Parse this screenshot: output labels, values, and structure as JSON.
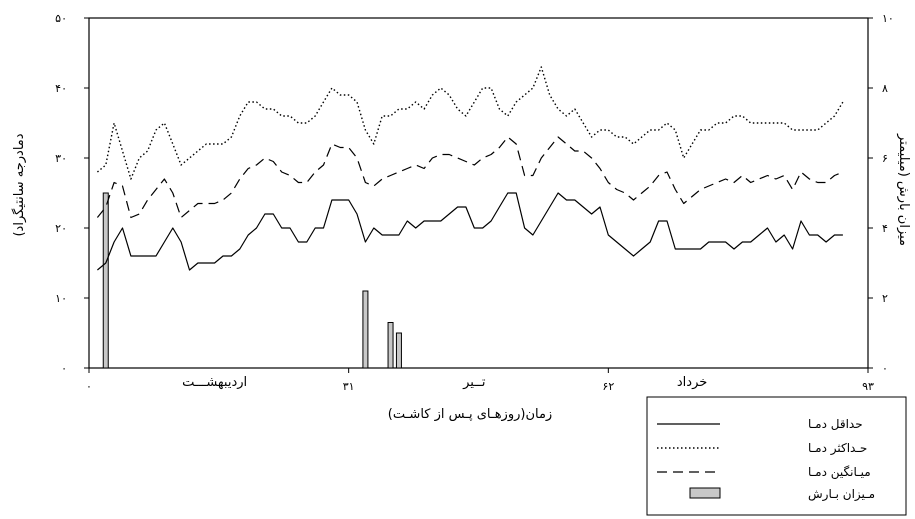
{
  "chart_data": {
    "type": "line",
    "xlabel": "زمان(روزهـای پـس از کاشـت)",
    "ylabel_left": "دمادرجه سانتیگراد)",
    "ylabel_right": "میزان بارش (میلیمتر",
    "xlim": [
      0,
      93
    ],
    "ylim_left": [
      0,
      50
    ],
    "ylim_right": [
      0,
      10
    ],
    "x_ticks": [
      0,
      31,
      62,
      93
    ],
    "x_tick_labels": [
      "۰",
      "۳۱",
      "۶۲",
      "۹۳"
    ],
    "y_left_ticks": [
      0,
      10,
      20,
      30,
      40,
      50
    ],
    "y_left_tick_labels": [
      "۰",
      "۱۰",
      "۲۰",
      "۳۰",
      "۴۰",
      "۵۰"
    ],
    "y_right_ticks": [
      0,
      2,
      4,
      6,
      8,
      10
    ],
    "y_right_tick_labels": [
      "۰",
      "۲",
      "۴",
      "۶",
      "۸",
      "۱۰"
    ],
    "months": [
      {
        "label": "اردیبهشـــت",
        "x_center": 15
      },
      {
        "label": "تــیر",
        "x_center": 46
      },
      {
        "label": "خرداد",
        "x_center": 72
      }
    ],
    "grid": false,
    "legend_position": "bottom-right",
    "series": [
      {
        "name": "حداقل دمـا",
        "style": "solid",
        "x": [
          1,
          2,
          3,
          4,
          5,
          6,
          7,
          8,
          9,
          10,
          11,
          12,
          13,
          14,
          15,
          16,
          17,
          18,
          19,
          20,
          21,
          22,
          23,
          24,
          25,
          26,
          27,
          28,
          29,
          30,
          31,
          32,
          33,
          34,
          35,
          36,
          37,
          38,
          39,
          40,
          41,
          42,
          43,
          44,
          45,
          46,
          47,
          48,
          49,
          50,
          51,
          52,
          53,
          54,
          55,
          56,
          57,
          58,
          59,
          60,
          61,
          62,
          63,
          64,
          65,
          66,
          67,
          68,
          69,
          70,
          71,
          72,
          73,
          74,
          75,
          76,
          77,
          78,
          79,
          80,
          81,
          82,
          83,
          84,
          85,
          86,
          87,
          88,
          89,
          90
        ],
        "values": [
          14,
          15,
          18,
          20,
          16,
          16,
          16,
          16,
          18,
          20,
          18,
          14,
          15,
          15,
          15,
          16,
          16,
          17,
          19,
          20,
          22,
          22,
          20,
          20,
          18,
          18,
          20,
          20,
          24,
          24,
          24,
          22,
          18,
          20,
          19,
          19,
          19,
          21,
          20,
          21,
          21,
          21,
          22,
          23,
          23,
          20,
          20,
          21,
          23,
          25,
          25,
          20,
          19,
          21,
          23,
          25,
          24,
          24,
          23,
          22,
          23,
          19,
          18,
          17,
          16,
          17,
          18,
          21,
          21,
          17,
          17,
          17,
          17,
          18,
          18,
          18,
          17,
          18,
          18,
          19,
          20,
          18,
          19,
          17,
          21,
          19,
          19,
          18,
          19,
          19
        ]
      },
      {
        "name": "حـداکثر دمـا",
        "style": "dotted",
        "x": [
          1,
          2,
          3,
          4,
          5,
          6,
          7,
          8,
          9,
          10,
          11,
          12,
          13,
          14,
          15,
          16,
          17,
          18,
          19,
          20,
          21,
          22,
          23,
          24,
          25,
          26,
          27,
          28,
          29,
          30,
          31,
          32,
          33,
          34,
          35,
          36,
          37,
          38,
          39,
          40,
          41,
          42,
          43,
          44,
          45,
          46,
          47,
          48,
          49,
          50,
          51,
          52,
          53,
          54,
          55,
          56,
          57,
          58,
          59,
          60,
          61,
          62,
          63,
          64,
          65,
          66,
          67,
          68,
          69,
          70,
          71,
          72,
          73,
          74,
          75,
          76,
          77,
          78,
          79,
          80,
          81,
          82,
          83,
          84,
          85,
          86,
          87,
          88,
          89,
          90
        ],
        "values": [
          28,
          29,
          35,
          31,
          27,
          30,
          31,
          34,
          35,
          32,
          29,
          30,
          31,
          32,
          32,
          32,
          33,
          36,
          38,
          38,
          37,
          37,
          36,
          36,
          35,
          35,
          36,
          38,
          40,
          39,
          39,
          38,
          34,
          32,
          36,
          36,
          37,
          37,
          38,
          37,
          39,
          40,
          39,
          37,
          36,
          38,
          40,
          40,
          37,
          36,
          38,
          39,
          40,
          43,
          39,
          37,
          36,
          37,
          35,
          33,
          34,
          34,
          33,
          33,
          32,
          33,
          34,
          34,
          35,
          34,
          30,
          32,
          34,
          34,
          35,
          35,
          36,
          36,
          35,
          35,
          35,
          35,
          35,
          34,
          34,
          34,
          34,
          35,
          36,
          38
        ]
      },
      {
        "name": "میـانگین دمـا",
        "style": "dashed",
        "x": [
          1,
          2,
          3,
          4,
          5,
          6,
          7,
          8,
          9,
          10,
          11,
          12,
          13,
          14,
          15,
          16,
          17,
          18,
          19,
          20,
          21,
          22,
          23,
          24,
          25,
          26,
          27,
          28,
          29,
          30,
          31,
          32,
          33,
          34,
          35,
          36,
          37,
          38,
          39,
          40,
          41,
          42,
          43,
          44,
          45,
          46,
          47,
          48,
          49,
          50,
          51,
          52,
          53,
          54,
          55,
          56,
          57,
          58,
          59,
          60,
          61,
          62,
          63,
          64,
          65,
          66,
          67,
          68,
          69,
          70,
          71,
          72,
          73,
          74,
          75,
          76,
          77,
          78,
          79,
          80,
          81,
          82,
          83,
          84,
          85,
          86,
          87,
          88,
          89,
          90
        ],
        "values": [
          21.5,
          23,
          26.5,
          26,
          21.5,
          22,
          24,
          25.5,
          27,
          25,
          21.5,
          22.5,
          23.5,
          23.5,
          23.5,
          24,
          25,
          27,
          28.5,
          29,
          30,
          29.5,
          28,
          27.5,
          26.5,
          26.5,
          28,
          29,
          32,
          31.5,
          31.5,
          30,
          26.5,
          26,
          27,
          27.5,
          28,
          28.5,
          29,
          28.5,
          30,
          30.5,
          30.5,
          30,
          29.5,
          29,
          30,
          30.5,
          31.5,
          33,
          32,
          27.5,
          27.5,
          30,
          31.5,
          33,
          32,
          31,
          31,
          30,
          28.5,
          26.5,
          25.5,
          25,
          24,
          25,
          26,
          27.5,
          28,
          25.5,
          23.5,
          24.5,
          25.5,
          26,
          26.5,
          27,
          26.5,
          27.5,
          26.5,
          27,
          27.5,
          27,
          27.5,
          25.5,
          28,
          27,
          26.5,
          26.5,
          27.5,
          28
        ]
      }
    ],
    "bar_series": {
      "name": "مـیزان بـارش",
      "axis": "right",
      "x": [
        2,
        33,
        36,
        37
      ],
      "values": [
        5,
        2.2,
        1.3,
        1
      ]
    }
  },
  "legend": {
    "items": [
      "حداقل دمـا",
      "حـداکثر دمـا",
      "میـانگین دمـا",
      "مـیزان بـارش"
    ]
  }
}
